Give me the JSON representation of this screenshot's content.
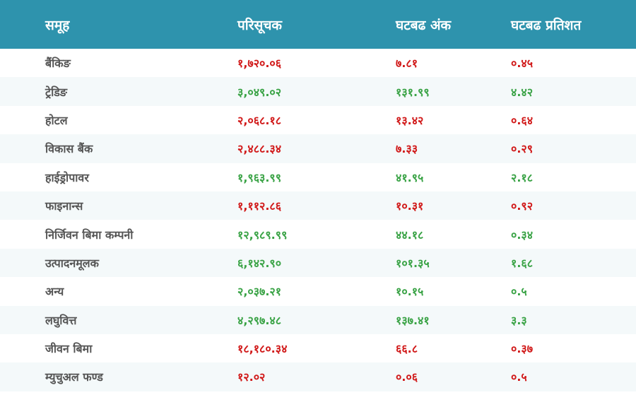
{
  "header": {
    "group": "समूह",
    "index": "परिसूचक",
    "change_points": "घटबढ अंक",
    "change_percent": "घटबढ प्रतिशत"
  },
  "colors": {
    "header_bg": "#2e93ad",
    "positive": "#3aa346",
    "negative": "#d11a1a"
  },
  "rows": [
    {
      "group": "बैंकिङ",
      "index": "१,७२०.०६",
      "points": "७.८१",
      "percent": "०.४५",
      "trend": "negative"
    },
    {
      "group": "ट्रेडिङ",
      "index": "३,०४९.०२",
      "points": "१३१.९९",
      "percent": "४.४२",
      "trend": "positive"
    },
    {
      "group": "होटल",
      "index": "२,०६८.१८",
      "points": "१३.४२",
      "percent": "०.६४",
      "trend": "negative"
    },
    {
      "group": "विकास बैंक",
      "index": "२,४८८.३४",
      "points": "७.३३",
      "percent": "०.२९",
      "trend": "negative"
    },
    {
      "group": "हाईड्रोपावर",
      "index": "१,९६३.९९",
      "points": "४१.९५",
      "percent": "२.१८",
      "trend": "positive"
    },
    {
      "group": "फाइनान्स",
      "index": "१,११२.८६",
      "points": "१०.३१",
      "percent": "०.९२",
      "trend": "negative"
    },
    {
      "group": "निर्जिवन बिमा कम्पनी",
      "index": "१२,९८९.९९",
      "points": "४४.१८",
      "percent": "०.३४",
      "trend": "positive"
    },
    {
      "group": "उत्पादनमूलक",
      "index": "६,१४२.९०",
      "points": "१०१.३५",
      "percent": "१.६८",
      "trend": "positive"
    },
    {
      "group": "अन्य",
      "index": "२,०३७.२१",
      "points": "१०.१५",
      "percent": "०.५",
      "trend": "positive"
    },
    {
      "group": "लघुवित्त",
      "index": "४,२९७.४८",
      "points": "१३७.४१",
      "percent": "३.३",
      "trend": "positive"
    },
    {
      "group": "जीवन बिमा",
      "index": "१८,१८०.३४",
      "points": "६६.८",
      "percent": "०.३७",
      "trend": "negative"
    },
    {
      "group": "म्युचुअल फण्ड",
      "index": "१२.०२",
      "points": "०.०६",
      "percent": "०.५",
      "trend": "negative"
    }
  ]
}
